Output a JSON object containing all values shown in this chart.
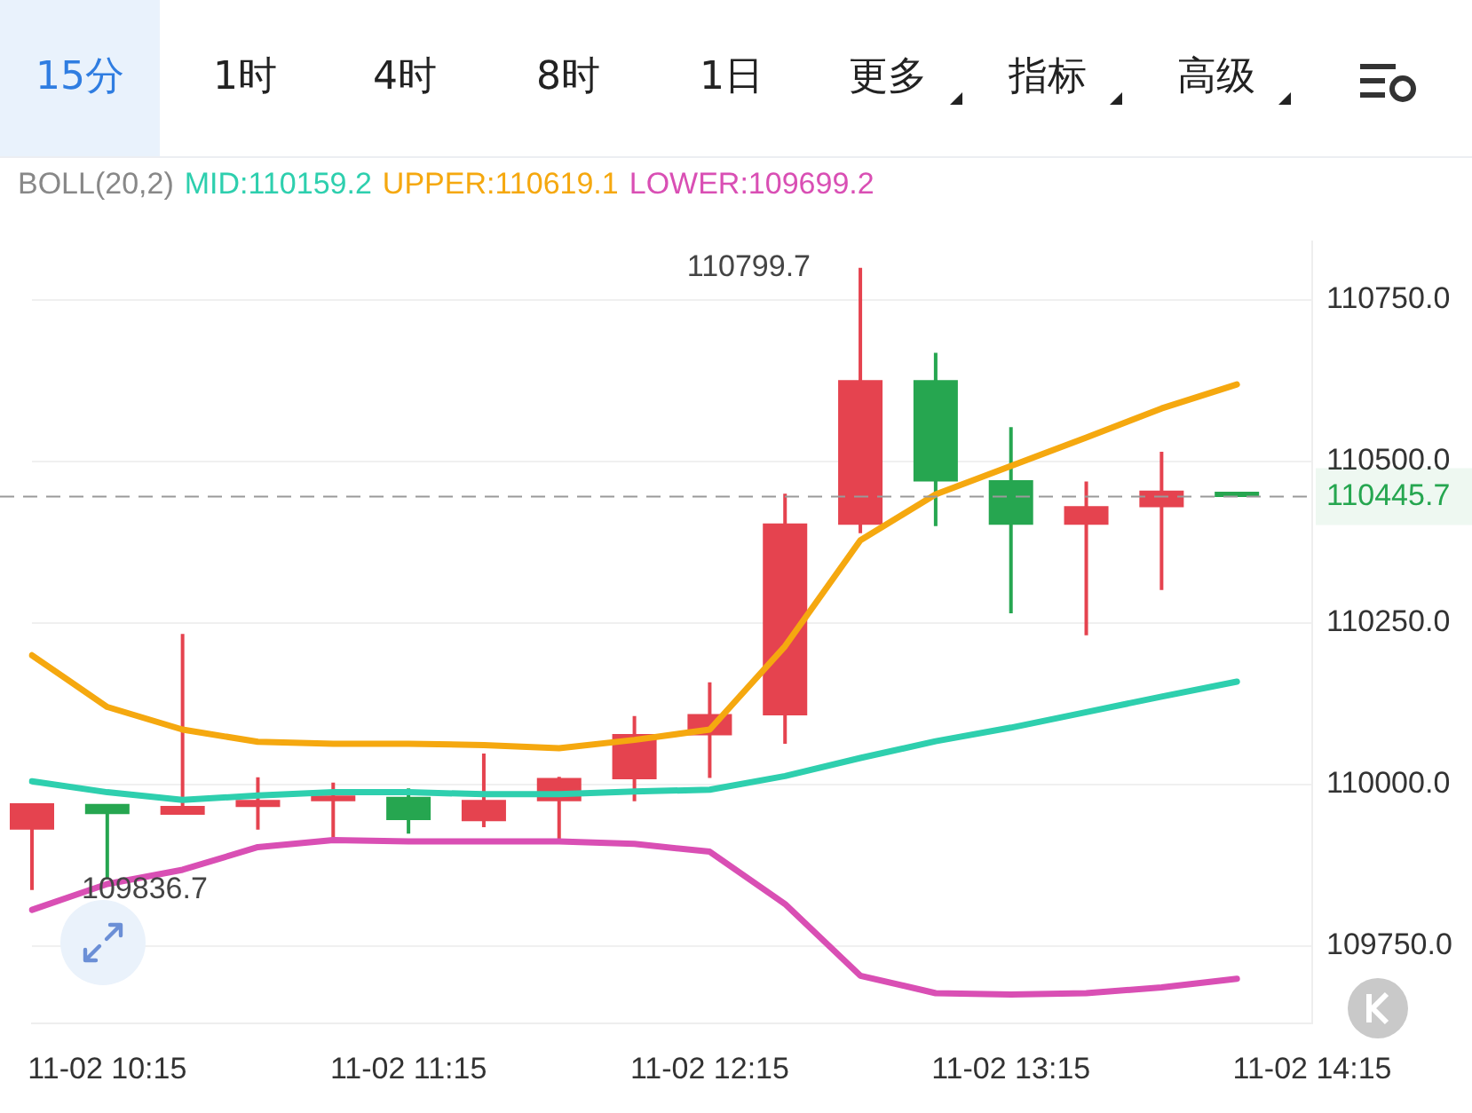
{
  "chart_data": [
    {
      "type": "other",
      "annotations": [
        "15分",
        "1时",
        "4时",
        "8时",
        "1日",
        "更多",
        "指标",
        "高级"
      ]
    },
    {
      "type": "candlestick",
      "subtitle": "BOLL(20,2)",
      "categories": [
        null,
        "11-02 10:15",
        null,
        null,
        null,
        "11-02 11:15",
        null,
        null,
        null,
        "11-02 12:15",
        null,
        null,
        null,
        "11-02 13:15",
        null,
        null,
        null,
        "11-02 14:15"
      ],
      "ohlc": [
        [
          109930,
          109971,
          109836.7,
          109971
        ],
        [
          109970,
          109970,
          109854,
          109954
        ],
        [
          109953,
          110233,
          109953,
          109967
        ],
        [
          109965,
          110011,
          109930,
          109976
        ],
        [
          109974,
          110003,
          109917,
          109983
        ],
        [
          109981,
          109994,
          109924,
          109945
        ],
        [
          109943,
          110048,
          109934,
          109976
        ],
        [
          109974,
          110012,
          109912,
          110010
        ],
        [
          110008,
          110106,
          109974,
          110078
        ],
        [
          110076,
          110158,
          110010,
          110109
        ],
        [
          110107,
          110450,
          110063,
          110404
        ],
        [
          110402,
          110799.7,
          110389,
          110626
        ],
        [
          110626,
          110668,
          110400,
          110469
        ],
        [
          110471,
          110553,
          110265,
          110402
        ],
        [
          110402,
          110469,
          110231,
          110431
        ],
        [
          110429,
          110515,
          110301,
          110455
        ],
        [
          110453,
          110453,
          110445.7,
          110445.7
        ],
        null
      ],
      "colors": [
        "#e5434f",
        "#26a650",
        "#e5434f",
        "#e5434f",
        "#e5434f",
        "#26a650",
        "#e5434f",
        "#e5434f",
        "#e5434f",
        "#e5434f",
        "#e5434f",
        "#e5434f",
        "#26a650",
        "#26a650",
        "#e5434f",
        "#e5434f",
        "#26a650",
        null
      ],
      "series": [
        {
          "name": "MID:110159.2",
          "type": "line",
          "color": "#2ecfae",
          "values": [
            110005,
            109988,
            109976,
            109983,
            109988,
            109988,
            109985,
            109985,
            109989,
            109992,
            110013,
            110041,
            110067,
            110088,
            110112,
            110136,
            110159.2,
            null
          ]
        },
        {
          "name": "UPPER:110619.1",
          "type": "line",
          "color": "#f5a80f",
          "values": [
            110200,
            110120,
            110085,
            110066,
            110063,
            110063,
            110061,
            110056,
            110069,
            110085,
            110214,
            110378,
            110449,
            110493,
            110537,
            110582,
            110619.1,
            null
          ]
        },
        {
          "name": "LOWER:109699.2",
          "type": "line",
          "color": "#d94fb4",
          "values": [
            109806,
            109846,
            109868,
            109903,
            109914,
            109912,
            109912,
            109912,
            109908,
            109896,
            109815,
            109704,
            109677,
            109675,
            109677,
            109686,
            109699.2,
            null
          ]
        }
      ],
      "ylim": [
        109630,
        110840
      ],
      "yticks": [
        {
          "value": 109750,
          "label": "109750.0"
        },
        {
          "value": 110000,
          "label": "110000.0"
        },
        {
          "value": 110250,
          "label": "110250.0"
        },
        {
          "value": 110500,
          "label": "110500.0"
        },
        {
          "value": 110750,
          "label": "110750.0"
        }
      ],
      "ref_lines": [
        {
          "axis": "y",
          "value": 110445.7,
          "label": "110445.7",
          "color": "#9a9a9a",
          "line_style": "dashed"
        }
      ],
      "annotations": [
        "110799.7",
        "109836.7"
      ],
      "grid": "y",
      "legend": "top",
      "marker": "none",
      "line_style": "solid"
    }
  ]
}
